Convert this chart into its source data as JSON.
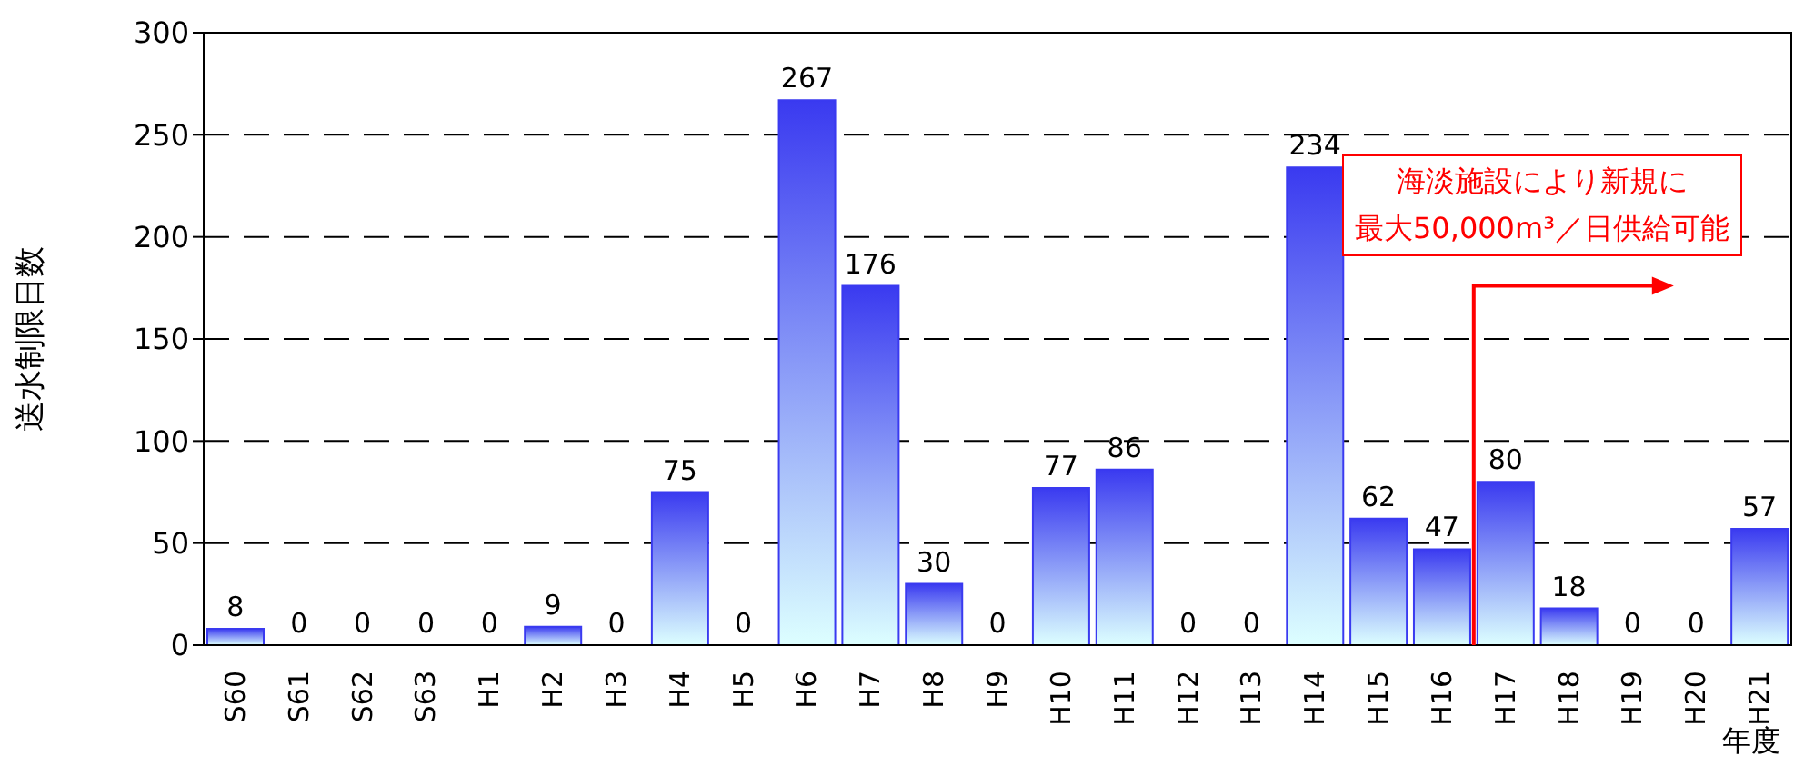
{
  "chart_data": {
    "type": "bar",
    "ylabel": "送水制限日数",
    "xlabel": "年度",
    "categories": [
      "S60",
      "S61",
      "S62",
      "S63",
      "H1",
      "H2",
      "H3",
      "H4",
      "H5",
      "H6",
      "H7",
      "H8",
      "H9",
      "H10",
      "H11",
      "H12",
      "H13",
      "H14",
      "H15",
      "H16",
      "H17",
      "H18",
      "H19",
      "H20",
      "H21"
    ],
    "values": [
      8,
      0,
      0,
      0,
      0,
      9,
      0,
      75,
      0,
      267,
      176,
      30,
      0,
      77,
      86,
      0,
      0,
      234,
      62,
      47,
      80,
      18,
      0,
      0,
      57
    ],
    "color": "#3a3af0",
    "ylim": [
      0,
      300
    ],
    "yticks": [
      0,
      50,
      100,
      150,
      200,
      250,
      300
    ],
    "grid": "y",
    "data_labels": true,
    "legend": false,
    "annotations": [
      "海淡施設により新規に",
      "最大50,000m³／日供給可能"
    ]
  }
}
